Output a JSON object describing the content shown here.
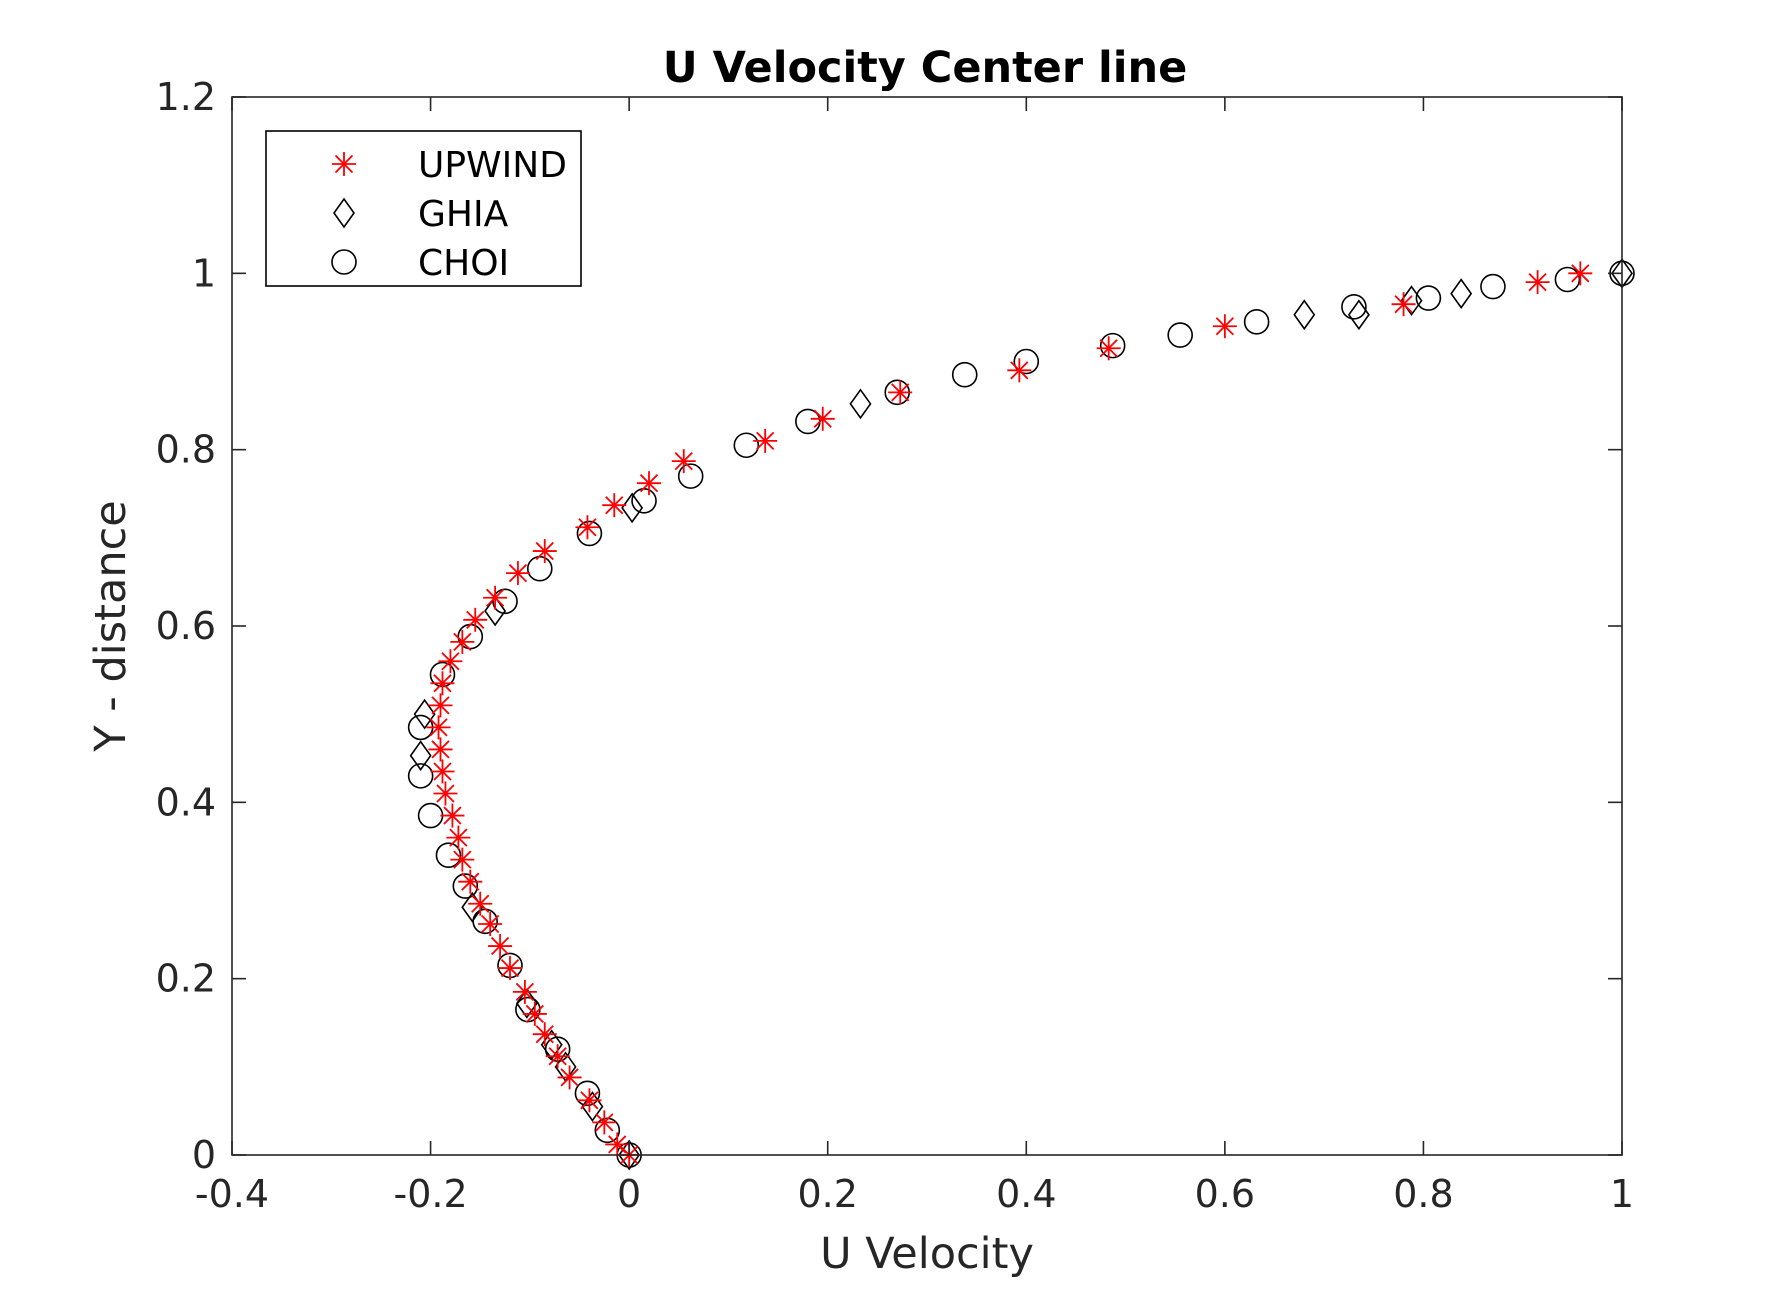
{
  "chart_data": {
    "type": "scatter",
    "title": "U Velocity Center line",
    "xlabel": "U Velocity",
    "ylabel": "Y - distance",
    "xlim": [
      -0.4,
      1
    ],
    "ylim": [
      0,
      1.2
    ],
    "xticks": [
      -0.4,
      -0.2,
      0,
      0.2,
      0.4,
      0.6,
      0.8,
      1
    ],
    "yticks": [
      0,
      0.2,
      0.4,
      0.6,
      0.8,
      1,
      1.2
    ],
    "xtick_labels": [
      "-0.4",
      "-0.2",
      "0",
      "0.2",
      "0.4",
      "0.6",
      "0.8",
      "1"
    ],
    "ytick_labels": [
      "0",
      "0.2",
      "0.4",
      "0.6",
      "0.8",
      "1",
      "1.2"
    ],
    "grid": false,
    "legend_position": "top-left",
    "series": [
      {
        "name": "UPWIND",
        "marker": "asterisk",
        "color": "#ff0000",
        "points": [
          [
            0.0,
            0.0
          ],
          [
            -0.012,
            0.012
          ],
          [
            -0.025,
            0.037
          ],
          [
            -0.04,
            0.062
          ],
          [
            -0.06,
            0.088
          ],
          [
            -0.072,
            0.112
          ],
          [
            -0.085,
            0.137
          ],
          [
            -0.095,
            0.16
          ],
          [
            -0.105,
            0.185
          ],
          [
            -0.12,
            0.212
          ],
          [
            -0.13,
            0.237
          ],
          [
            -0.14,
            0.262
          ],
          [
            -0.15,
            0.285
          ],
          [
            -0.16,
            0.31
          ],
          [
            -0.168,
            0.335
          ],
          [
            -0.172,
            0.36
          ],
          [
            -0.178,
            0.385
          ],
          [
            -0.185,
            0.41
          ],
          [
            -0.188,
            0.435
          ],
          [
            -0.19,
            0.46
          ],
          [
            -0.192,
            0.485
          ],
          [
            -0.19,
            0.51
          ],
          [
            -0.188,
            0.535
          ],
          [
            -0.18,
            0.56
          ],
          [
            -0.168,
            0.582
          ],
          [
            -0.155,
            0.607
          ],
          [
            -0.135,
            0.632
          ],
          [
            -0.112,
            0.66
          ],
          [
            -0.085,
            0.685
          ],
          [
            -0.042,
            0.712
          ],
          [
            -0.015,
            0.737
          ],
          [
            0.02,
            0.762
          ],
          [
            0.055,
            0.787
          ],
          [
            0.137,
            0.81
          ],
          [
            0.195,
            0.835
          ],
          [
            0.273,
            0.865
          ],
          [
            0.393,
            0.89
          ],
          [
            0.483,
            0.915
          ],
          [
            0.6,
            0.94
          ],
          [
            0.78,
            0.965
          ],
          [
            0.915,
            0.99
          ],
          [
            0.958,
            1.0
          ]
        ]
      },
      {
        "name": "GHIA",
        "marker": "diamond",
        "color": "#000000",
        "points": [
          [
            0.0,
            0.0
          ],
          [
            -0.037,
            0.055
          ],
          [
            -0.064,
            0.1
          ],
          [
            -0.078,
            0.125
          ],
          [
            -0.103,
            0.172
          ],
          [
            -0.158,
            0.281
          ],
          [
            -0.21,
            0.453
          ],
          [
            -0.206,
            0.5
          ],
          [
            -0.135,
            0.617
          ],
          [
            0.003,
            0.734
          ],
          [
            0.233,
            0.852
          ],
          [
            0.735,
            0.953
          ],
          [
            0.788,
            0.969
          ],
          [
            0.838,
            0.977
          ],
          [
            0.68,
            0.953
          ],
          [
            1.0,
            1.0
          ]
        ]
      },
      {
        "name": "CHOI",
        "marker": "circle",
        "color": "#000000",
        "points": [
          [
            0.0,
            0.0
          ],
          [
            -0.022,
            0.028
          ],
          [
            -0.042,
            0.07
          ],
          [
            -0.072,
            0.12
          ],
          [
            -0.102,
            0.165
          ],
          [
            -0.12,
            0.215
          ],
          [
            -0.145,
            0.265
          ],
          [
            -0.165,
            0.305
          ],
          [
            -0.182,
            0.34
          ],
          [
            -0.2,
            0.385
          ],
          [
            -0.21,
            0.43
          ],
          [
            -0.21,
            0.485
          ],
          [
            -0.188,
            0.545
          ],
          [
            -0.16,
            0.588
          ],
          [
            -0.125,
            0.628
          ],
          [
            -0.09,
            0.665
          ],
          [
            -0.04,
            0.705
          ],
          [
            0.015,
            0.742
          ],
          [
            0.062,
            0.77
          ],
          [
            0.118,
            0.805
          ],
          [
            0.18,
            0.832
          ],
          [
            0.27,
            0.865
          ],
          [
            0.338,
            0.885
          ],
          [
            0.4,
            0.9
          ],
          [
            0.487,
            0.918
          ],
          [
            0.555,
            0.93
          ],
          [
            0.632,
            0.945
          ],
          [
            0.73,
            0.962
          ],
          [
            0.805,
            0.972
          ],
          [
            0.87,
            0.985
          ],
          [
            0.945,
            0.993
          ],
          [
            1.0,
            1.0
          ]
        ]
      }
    ]
  }
}
